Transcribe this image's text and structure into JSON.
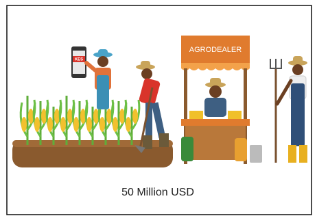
{
  "image": {
    "phone_label": "KES",
    "sign": "AGRODEALER",
    "caption": "50 Million USD"
  }
}
